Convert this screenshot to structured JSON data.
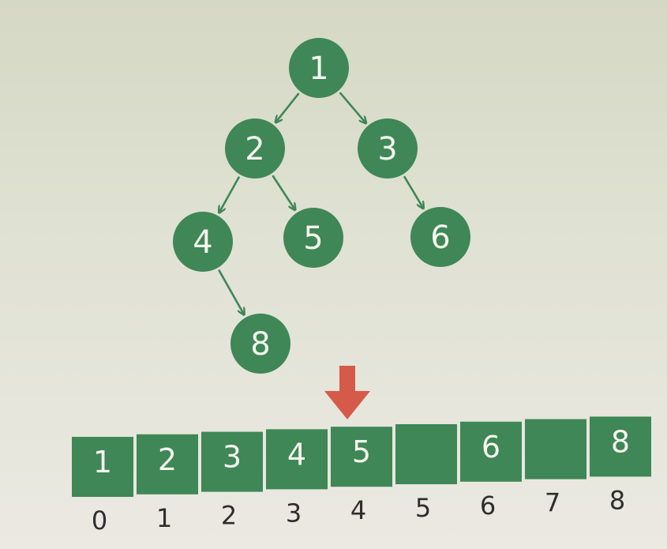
{
  "tree": {
    "nodes": [
      {
        "id": "1",
        "label": "1"
      },
      {
        "id": "2",
        "label": "2"
      },
      {
        "id": "3",
        "label": "3"
      },
      {
        "id": "4",
        "label": "4"
      },
      {
        "id": "5",
        "label": "5"
      },
      {
        "id": "6",
        "label": "6"
      },
      {
        "id": "8",
        "label": "8"
      }
    ],
    "edges": [
      {
        "from": "1",
        "to": "2"
      },
      {
        "from": "1",
        "to": "3"
      },
      {
        "from": "2",
        "to": "4"
      },
      {
        "from": "2",
        "to": "5"
      },
      {
        "from": "3",
        "to": "6"
      },
      {
        "from": "4",
        "to": "8"
      }
    ]
  },
  "array": {
    "cells": [
      {
        "index": "0",
        "value": "1"
      },
      {
        "index": "1",
        "value": "2"
      },
      {
        "index": "2",
        "value": "3"
      },
      {
        "index": "3",
        "value": "4"
      },
      {
        "index": "4",
        "value": "5"
      },
      {
        "index": "5",
        "value": ""
      },
      {
        "index": "6",
        "value": "6"
      },
      {
        "index": "7",
        "value": ""
      },
      {
        "index": "8",
        "value": "8"
      }
    ]
  },
  "colors": {
    "node_fill": "#3f8756",
    "edge": "#3f8756",
    "cell_fill": "#3f8756",
    "arrow": "#d65a4a",
    "index_text": "#2e2e2e"
  }
}
